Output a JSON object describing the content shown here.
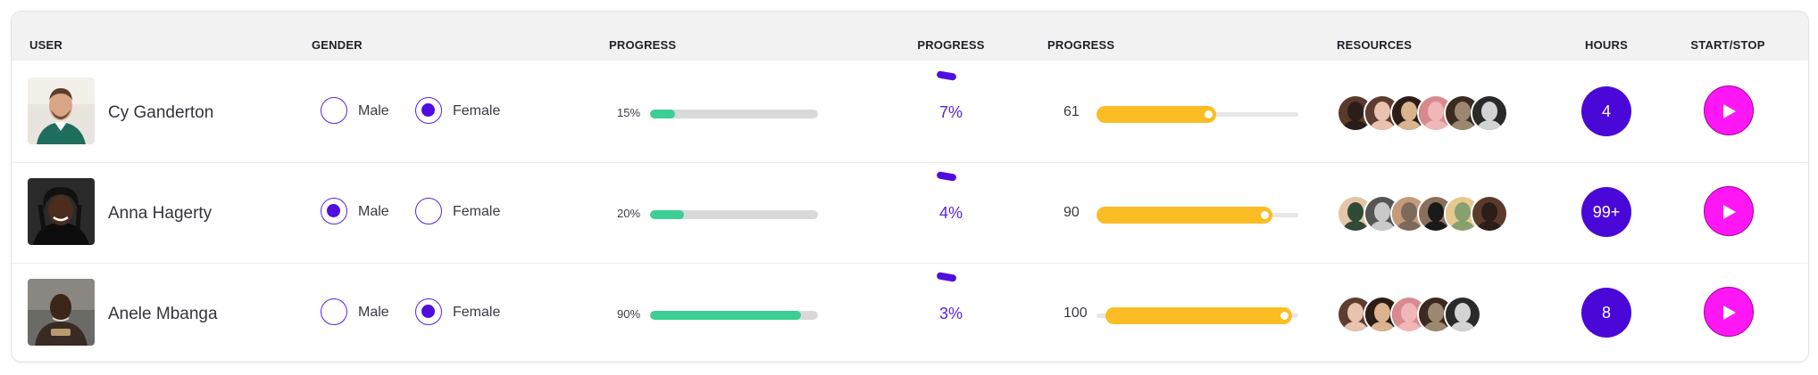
{
  "headers": {
    "user": "USER",
    "gender": "GENDER",
    "progress1": "PROGRESS",
    "progress2": "PROGRESS",
    "progress3": "PROGRESS",
    "resources": "RESOURCES",
    "hours": "HOURS",
    "start_stop": "START/STOP"
  },
  "gender_options": {
    "male": "Male",
    "female": "Female"
  },
  "colors": {
    "accent": "#4f0de0",
    "progress_green": "#3ccf95",
    "slider_yellow": "#fbbd23",
    "play_pink": "#ff16f4"
  },
  "rows": [
    {
      "name": "Cy Ganderton",
      "gender": "Female",
      "progress_bar_label": "15%",
      "progress_bar_value": 0.15,
      "progress_text": "7%",
      "slider_label": "61",
      "slider_value": 0.61,
      "resources": [
        "resource-avatar",
        "resource-avatar",
        "resource-avatar",
        "resource-avatar",
        "resource-avatar",
        "resource-avatar"
      ],
      "hours": "4"
    },
    {
      "name": "Anna Hagerty",
      "gender": "Male",
      "progress_bar_label": "20%",
      "progress_bar_value": 0.2,
      "progress_text": "4%",
      "slider_label": "90",
      "slider_value": 0.9,
      "resources": [
        "resource-avatar",
        "resource-avatar",
        "resource-avatar",
        "resource-avatar",
        "resource-avatar",
        "resource-avatar"
      ],
      "hours": "99+"
    },
    {
      "name": "Anele Mbanga",
      "gender": "Female",
      "progress_bar_label": "90%",
      "progress_bar_value": 0.9,
      "progress_text": "3%",
      "slider_label": "100",
      "slider_value": 1.0,
      "resources": [
        "resource-avatar",
        "resource-avatar",
        "resource-avatar",
        "resource-avatar",
        "resource-avatar"
      ],
      "hours": "8"
    }
  ]
}
